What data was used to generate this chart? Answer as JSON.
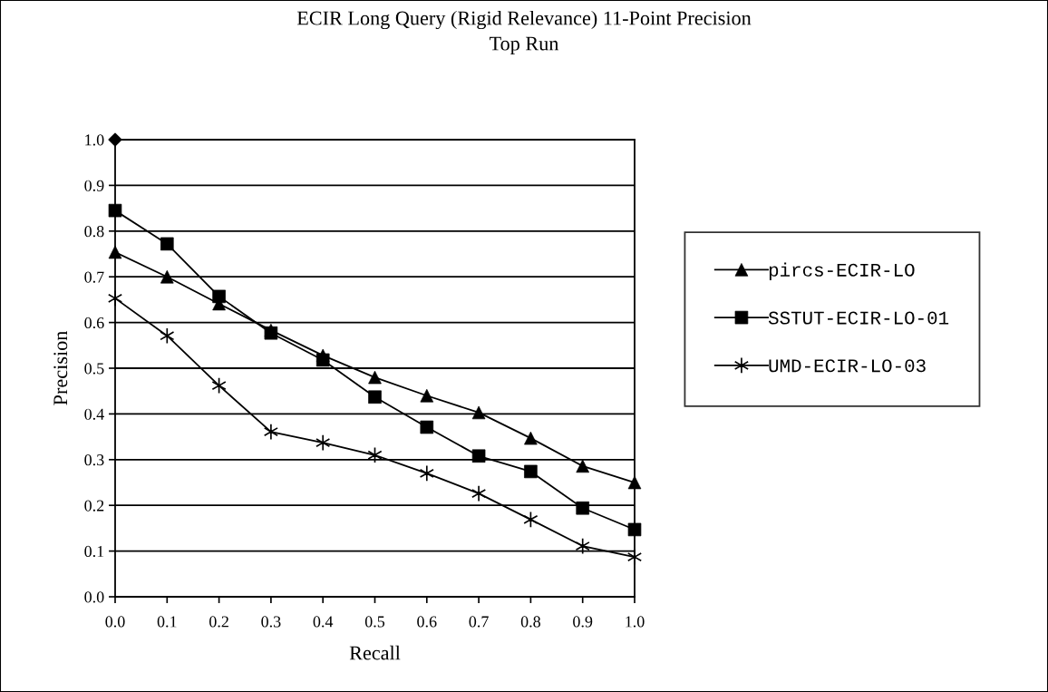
{
  "chart_data": {
    "type": "line",
    "title": "ECIR Long Query (Rigid Relevance) 11-Point Precision",
    "subtitle": "Top Run",
    "xlabel": "Recall",
    "ylabel": "Precision",
    "x": [
      0.0,
      0.1,
      0.2,
      0.3,
      0.4,
      0.5,
      0.6,
      0.7,
      0.8,
      0.9,
      1.0
    ],
    "xlim": [
      0,
      1
    ],
    "xticks": [
      {
        "value": 0,
        "label": "0.0"
      },
      0.1,
      0.2,
      0.3,
      0.4,
      0.5,
      0.6,
      0.7,
      0.8,
      0.9,
      {
        "value": 1,
        "label": "1.0"
      }
    ],
    "ylim": [
      0,
      1
    ],
    "yticks": [
      {
        "value": 0,
        "label": "0.0"
      },
      0.1,
      0.2,
      0.3,
      0.4,
      0.5,
      0.6,
      0.7,
      0.8,
      0.9,
      {
        "value": 1,
        "label": "1.0"
      }
    ],
    "grid": "y",
    "legend": "right",
    "line_style": "solid",
    "series": [
      {
        "name": "pircs-ECIR-LO",
        "color": "#000000",
        "marker": "triangle",
        "values": [
          0.754,
          0.7,
          0.641,
          0.583,
          0.528,
          0.48,
          0.44,
          0.403,
          0.347,
          0.286,
          0.25
        ]
      },
      {
        "name": "SSTUT-ECIR-LO-01",
        "color": "#000000",
        "marker": "square",
        "values": [
          0.845,
          0.772,
          0.657,
          0.577,
          0.518,
          0.437,
          0.371,
          0.308,
          0.274,
          0.194,
          0.147
        ]
      },
      {
        "name": "UMD-ECIR-LO-03",
        "color": "#000000",
        "marker": "cross",
        "values": [
          0.653,
          0.571,
          0.462,
          0.361,
          0.337,
          0.31,
          0.27,
          0.226,
          0.169,
          0.111,
          0.087
        ]
      },
      {
        "type": "scatter",
        "color": "#000000",
        "marker": "diamond",
        "x": [
          0.0
        ],
        "values": [
          1.0
        ]
      }
    ]
  }
}
